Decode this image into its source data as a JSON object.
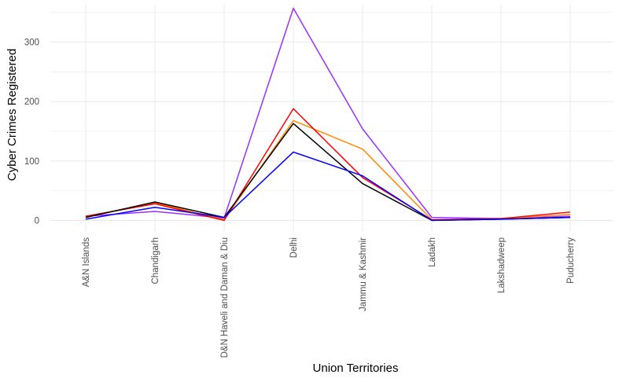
{
  "chart_data": {
    "type": "line",
    "title": "",
    "xlabel": "Union Territories",
    "ylabel": "Cyber Crimes Registered",
    "categories": [
      "A&N Islands",
      "Chandigarh",
      "D&N Haveli and Daman & Diu",
      "Delhi",
      "Jammu & Kashmir",
      "Ladakh",
      "Lakshadweep",
      "Puducherry"
    ],
    "ylim": [
      -18,
      363
    ],
    "yticks": [
      0,
      100,
      200,
      300
    ],
    "grid": true,
    "legend": "none",
    "series": [
      {
        "color": "#9B30FF",
        "values": [
          7,
          15,
          4,
          357,
          154,
          5,
          3,
          7
        ]
      },
      {
        "color": "#FF8C00",
        "values": [
          6,
          30,
          1,
          168,
          120,
          1,
          3,
          10
        ]
      },
      {
        "color": "#FF0000",
        "values": [
          7,
          28,
          0,
          188,
          72,
          1,
          3,
          14
        ]
      },
      {
        "color": "#000000",
        "values": [
          5,
          31,
          5,
          163,
          62,
          0,
          2,
          5
        ]
      },
      {
        "color": "#0000FF",
        "values": [
          2,
          22,
          5,
          115,
          75,
          0,
          2,
          5
        ]
      }
    ]
  }
}
